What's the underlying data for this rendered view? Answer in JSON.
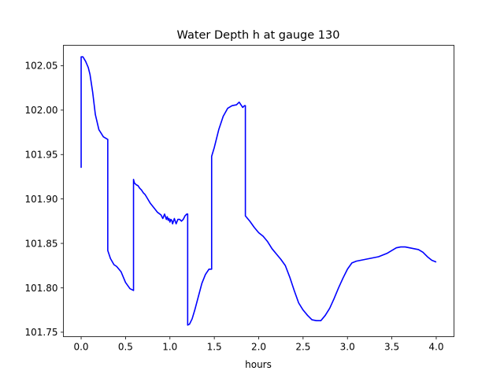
{
  "chart_data": {
    "type": "line",
    "title": "Water Depth h at gauge 130",
    "xlabel": "hours",
    "ylabel": "",
    "xlim": [
      -0.2,
      4.2
    ],
    "ylim": [
      101.745,
      102.073
    ],
    "xticks": [
      0.0,
      0.5,
      1.0,
      1.5,
      2.0,
      2.5,
      3.0,
      3.5,
      4.0
    ],
    "xtick_labels": [
      "0.0",
      "0.5",
      "1.0",
      "1.5",
      "2.0",
      "2.5",
      "3.0",
      "3.5",
      "4.0"
    ],
    "yticks": [
      101.75,
      101.8,
      101.85,
      101.9,
      101.95,
      102.0,
      102.05
    ],
    "ytick_labels": [
      "101.75",
      "101.80",
      "101.85",
      "101.90",
      "101.95",
      "102.00",
      "102.05"
    ],
    "grid": false,
    "series": [
      {
        "color": "#0000ff",
        "x": [
          0.0,
          0.0,
          0.02,
          0.05,
          0.08,
          0.1,
          0.13,
          0.16,
          0.2,
          0.25,
          0.3,
          0.3,
          0.33,
          0.37,
          0.4,
          0.45,
          0.5,
          0.55,
          0.59,
          0.59,
          0.6,
          0.62,
          0.64,
          0.66,
          0.68,
          0.7,
          0.72,
          0.75,
          0.78,
          0.82,
          0.86,
          0.9,
          0.92,
          0.94,
          0.96,
          0.97,
          0.98,
          0.99,
          1.0,
          1.01,
          1.02,
          1.03,
          1.05,
          1.07,
          1.09,
          1.11,
          1.13,
          1.15,
          1.17,
          1.19,
          1.2,
          1.2,
          1.22,
          1.25,
          1.28,
          1.32,
          1.36,
          1.4,
          1.44,
          1.47,
          1.47,
          1.5,
          1.55,
          1.6,
          1.65,
          1.7,
          1.75,
          1.78,
          1.8,
          1.82,
          1.84,
          1.85,
          1.85,
          1.9,
          1.95,
          2.0,
          2.05,
          2.1,
          2.15,
          2.2,
          2.25,
          2.3,
          2.35,
          2.4,
          2.45,
          2.5,
          2.55,
          2.6,
          2.65,
          2.7,
          2.75,
          2.8,
          2.85,
          2.9,
          2.95,
          3.0,
          3.05,
          3.1,
          3.15,
          3.2,
          3.25,
          3.3,
          3.35,
          3.4,
          3.45,
          3.5,
          3.55,
          3.6,
          3.65,
          3.7,
          3.75,
          3.8,
          3.85,
          3.9,
          3.95,
          4.0
        ],
        "y": [
          101.935,
          102.06,
          102.06,
          102.055,
          102.048,
          102.04,
          102.02,
          101.995,
          101.978,
          101.97,
          101.967,
          101.842,
          101.833,
          101.826,
          101.824,
          101.818,
          101.806,
          101.799,
          101.797,
          101.922,
          101.918,
          101.916,
          101.915,
          101.912,
          101.91,
          101.907,
          101.905,
          101.9,
          101.895,
          101.89,
          101.885,
          101.882,
          101.878,
          101.883,
          101.877,
          101.88,
          101.876,
          101.878,
          101.874,
          101.877,
          101.876,
          101.872,
          101.878,
          101.872,
          101.877,
          101.877,
          101.875,
          101.877,
          101.881,
          101.883,
          101.883,
          101.758,
          101.759,
          101.765,
          101.775,
          101.79,
          101.805,
          101.815,
          101.821,
          101.821,
          101.948,
          101.958,
          101.978,
          101.993,
          102.002,
          102.005,
          102.006,
          102.009,
          102.006,
          102.003,
          102.005,
          102.005,
          101.881,
          101.875,
          101.868,
          101.862,
          101.858,
          101.852,
          101.844,
          101.838,
          101.832,
          101.825,
          101.812,
          101.797,
          101.783,
          101.775,
          101.769,
          101.764,
          101.763,
          101.763,
          101.769,
          101.777,
          101.788,
          101.8,
          101.811,
          101.821,
          101.828,
          101.83,
          101.831,
          101.832,
          101.833,
          101.834,
          101.835,
          101.837,
          101.839,
          101.842,
          101.845,
          101.846,
          101.846,
          101.845,
          101.844,
          101.843,
          101.84,
          101.835,
          101.831,
          101.829
        ]
      }
    ]
  }
}
